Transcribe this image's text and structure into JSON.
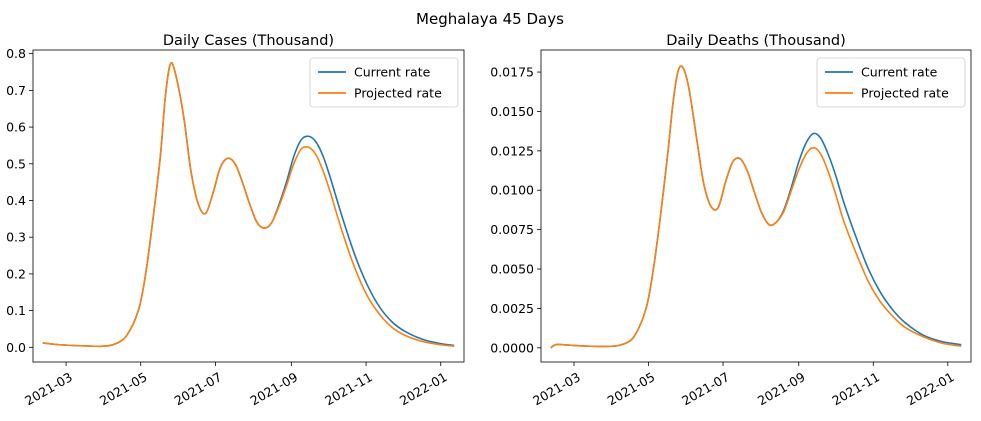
{
  "figure": {
    "suptitle": "Meghalaya 45 Days"
  },
  "colors": {
    "current": "#1f77b4",
    "projected": "#ff7f0e"
  },
  "chart_data": [
    {
      "type": "line",
      "title": "Daily Cases (Thousand)",
      "xlabel": "",
      "ylabel": "",
      "xlim": [
        "2021-02-02",
        "2022-01-20"
      ],
      "ylim": [
        -0.04,
        0.81
      ],
      "yticks": [
        0.0,
        0.1,
        0.2,
        0.3,
        0.4,
        0.5,
        0.6,
        0.7,
        0.8
      ],
      "ytick_labels": [
        "0.0",
        "0.1",
        "0.2",
        "0.3",
        "0.4",
        "0.5",
        "0.6",
        "0.7",
        "0.8"
      ],
      "xticks": [
        "2021-03-01",
        "2021-05-01",
        "2021-07-01",
        "2021-09-01",
        "2021-11-01",
        "2022-01-01"
      ],
      "xtick_labels": [
        "2021-03",
        "2021-05",
        "2021-07",
        "2021-09",
        "2021-11",
        "2022-01"
      ],
      "legend": {
        "placement": "upper-right",
        "entries": [
          "Current rate",
          "Projected rate"
        ]
      },
      "series": [
        {
          "name": "Current rate",
          "x": [
            "2021-02-10",
            "2021-02-20",
            "2021-03-01",
            "2021-03-15",
            "2021-03-31",
            "2021-04-09",
            "2021-04-19",
            "2021-04-29",
            "2021-05-05",
            "2021-05-11",
            "2021-05-17",
            "2021-05-21",
            "2021-05-25",
            "2021-05-29",
            "2021-06-05",
            "2021-06-11",
            "2021-06-17",
            "2021-06-23",
            "2021-06-29",
            "2021-07-05",
            "2021-07-11",
            "2021-07-17",
            "2021-07-23",
            "2021-07-29",
            "2021-08-04",
            "2021-08-10",
            "2021-08-16",
            "2021-08-22",
            "2021-08-28",
            "2021-09-03",
            "2021-09-09",
            "2021-09-15",
            "2021-09-21",
            "2021-09-27",
            "2021-10-03",
            "2021-10-13",
            "2021-10-23",
            "2021-11-02",
            "2021-11-12",
            "2021-11-22",
            "2021-12-02",
            "2021-12-17",
            "2022-01-01",
            "2022-01-12"
          ],
          "y": [
            0.012,
            0.008,
            0.006,
            0.004,
            0.003,
            0.008,
            0.03,
            0.1,
            0.2,
            0.35,
            0.52,
            0.68,
            0.77,
            0.75,
            0.63,
            0.48,
            0.39,
            0.365,
            0.42,
            0.49,
            0.515,
            0.5,
            0.45,
            0.39,
            0.34,
            0.325,
            0.34,
            0.39,
            0.45,
            0.52,
            0.565,
            0.575,
            0.56,
            0.52,
            0.46,
            0.35,
            0.25,
            0.17,
            0.11,
            0.07,
            0.045,
            0.022,
            0.01,
            0.005
          ]
        },
        {
          "name": "Projected rate",
          "x": [
            "2021-02-10",
            "2021-02-20",
            "2021-03-01",
            "2021-03-15",
            "2021-03-31",
            "2021-04-09",
            "2021-04-19",
            "2021-04-29",
            "2021-05-05",
            "2021-05-11",
            "2021-05-17",
            "2021-05-21",
            "2021-05-25",
            "2021-05-29",
            "2021-06-05",
            "2021-06-11",
            "2021-06-17",
            "2021-06-23",
            "2021-06-29",
            "2021-07-05",
            "2021-07-11",
            "2021-07-17",
            "2021-07-23",
            "2021-07-29",
            "2021-08-04",
            "2021-08-10",
            "2021-08-16",
            "2021-08-22",
            "2021-08-28",
            "2021-09-03",
            "2021-09-09",
            "2021-09-15",
            "2021-09-21",
            "2021-09-27",
            "2021-10-03",
            "2021-10-13",
            "2021-10-23",
            "2021-11-02",
            "2021-11-12",
            "2021-11-22",
            "2021-12-02",
            "2021-12-17",
            "2022-01-01",
            "2022-01-12"
          ],
          "y": [
            0.012,
            0.008,
            0.006,
            0.004,
            0.003,
            0.008,
            0.03,
            0.1,
            0.2,
            0.35,
            0.52,
            0.68,
            0.77,
            0.75,
            0.63,
            0.48,
            0.39,
            0.365,
            0.42,
            0.49,
            0.515,
            0.5,
            0.45,
            0.39,
            0.34,
            0.325,
            0.34,
            0.385,
            0.44,
            0.5,
            0.54,
            0.545,
            0.525,
            0.48,
            0.42,
            0.31,
            0.215,
            0.14,
            0.09,
            0.055,
            0.034,
            0.016,
            0.007,
            0.003
          ]
        }
      ]
    },
    {
      "type": "line",
      "title": "Daily Deaths (Thousand)",
      "xlabel": "",
      "ylabel": "",
      "xlim": [
        "2021-02-02",
        "2022-01-20"
      ],
      "ylim": [
        -0.0009,
        0.0189
      ],
      "yticks": [
        0.0,
        0.0025,
        0.005,
        0.0075,
        0.01,
        0.0125,
        0.015,
        0.0175
      ],
      "ytick_labels": [
        "0.0000",
        "0.0025",
        "0.0050",
        "0.0075",
        "0.0100",
        "0.0125",
        "0.0150",
        "0.0175"
      ],
      "xticks": [
        "2021-03-01",
        "2021-05-01",
        "2021-07-01",
        "2021-09-01",
        "2021-11-01",
        "2022-01-01"
      ],
      "xtick_labels": [
        "2021-03",
        "2021-05",
        "2021-07",
        "2021-09",
        "2021-11",
        "2022-01"
      ],
      "legend": {
        "placement": "upper-right",
        "entries": [
          "Current rate",
          "Projected rate"
        ]
      },
      "series": [
        {
          "name": "Current rate",
          "x": [
            "2021-02-10",
            "2021-02-14",
            "2021-02-20",
            "2021-03-01",
            "2021-03-15",
            "2021-03-31",
            "2021-04-09",
            "2021-04-19",
            "2021-04-29",
            "2021-05-05",
            "2021-05-11",
            "2021-05-17",
            "2021-05-21",
            "2021-05-25",
            "2021-05-29",
            "2021-06-03",
            "2021-06-09",
            "2021-06-15",
            "2021-06-21",
            "2021-06-27",
            "2021-07-03",
            "2021-07-09",
            "2021-07-15",
            "2021-07-21",
            "2021-07-27",
            "2021-08-02",
            "2021-08-08",
            "2021-08-14",
            "2021-08-20",
            "2021-08-26",
            "2021-09-01",
            "2021-09-07",
            "2021-09-13",
            "2021-09-19",
            "2021-09-25",
            "2021-10-01",
            "2021-10-08",
            "2021-10-18",
            "2021-10-28",
            "2021-11-07",
            "2021-11-17",
            "2021-11-27",
            "2021-12-12",
            "2021-12-27",
            "2022-01-12"
          ],
          "y": [
            0.0,
            0.0002,
            0.0002,
            0.00015,
            0.0001,
            0.0001,
            0.0002,
            0.0007,
            0.0025,
            0.005,
            0.0085,
            0.0125,
            0.0155,
            0.0175,
            0.0178,
            0.0165,
            0.0135,
            0.0105,
            0.009,
            0.0089,
            0.0105,
            0.0118,
            0.012,
            0.0112,
            0.0098,
            0.0085,
            0.0078,
            0.008,
            0.0088,
            0.0102,
            0.0118,
            0.013,
            0.0136,
            0.0133,
            0.0123,
            0.011,
            0.0092,
            0.007,
            0.005,
            0.0035,
            0.0024,
            0.0016,
            0.0008,
            0.0004,
            0.0002
          ]
        },
        {
          "name": "Projected rate",
          "x": [
            "2021-02-10",
            "2021-02-14",
            "2021-02-20",
            "2021-03-01",
            "2021-03-15",
            "2021-03-31",
            "2021-04-09",
            "2021-04-19",
            "2021-04-29",
            "2021-05-05",
            "2021-05-11",
            "2021-05-17",
            "2021-05-21",
            "2021-05-25",
            "2021-05-29",
            "2021-06-03",
            "2021-06-09",
            "2021-06-15",
            "2021-06-21",
            "2021-06-27",
            "2021-07-03",
            "2021-07-09",
            "2021-07-15",
            "2021-07-21",
            "2021-07-27",
            "2021-08-02",
            "2021-08-08",
            "2021-08-14",
            "2021-08-20",
            "2021-08-26",
            "2021-09-01",
            "2021-09-07",
            "2021-09-13",
            "2021-09-19",
            "2021-09-25",
            "2021-10-01",
            "2021-10-08",
            "2021-10-18",
            "2021-10-28",
            "2021-11-07",
            "2021-11-17",
            "2021-11-27",
            "2021-12-12",
            "2021-12-27",
            "2022-01-12"
          ],
          "y": [
            0.0,
            0.0002,
            0.0002,
            0.00015,
            0.0001,
            0.0001,
            0.0002,
            0.0007,
            0.0025,
            0.005,
            0.0085,
            0.0125,
            0.0155,
            0.0175,
            0.0178,
            0.0165,
            0.0135,
            0.0105,
            0.009,
            0.0089,
            0.0105,
            0.0118,
            0.012,
            0.0112,
            0.0098,
            0.0085,
            0.0078,
            0.008,
            0.0087,
            0.01,
            0.0113,
            0.0123,
            0.0127,
            0.0123,
            0.0112,
            0.0098,
            0.008,
            0.006,
            0.0042,
            0.0029,
            0.002,
            0.0013,
            0.0007,
            0.0003,
            0.0001
          ]
        }
      ]
    }
  ]
}
